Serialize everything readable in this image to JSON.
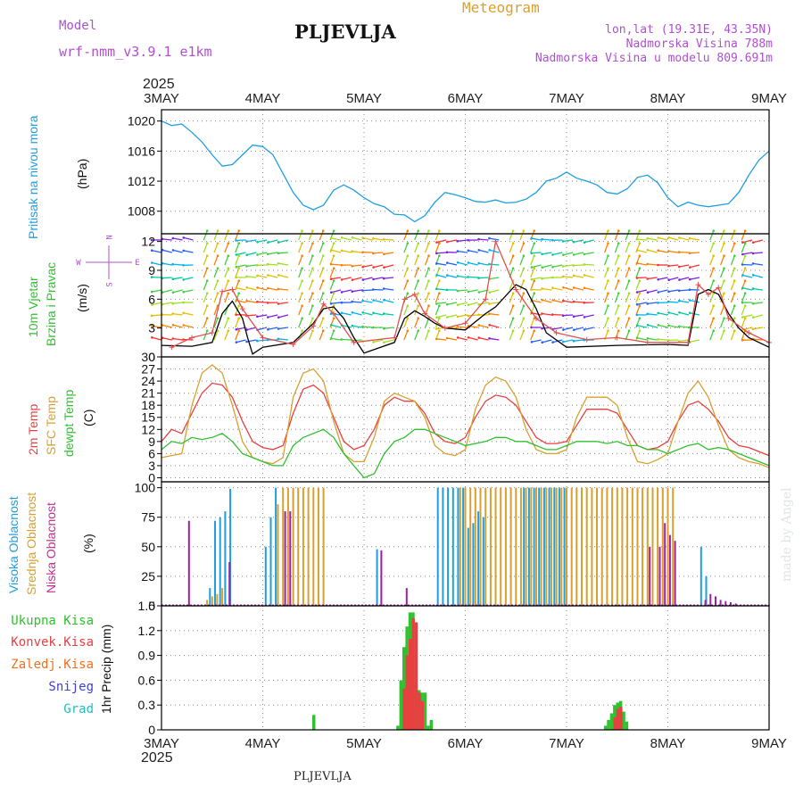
{
  "header": {
    "model_label": "Model",
    "model_value": "wrf-nmm_v3.9.1  e1km",
    "station": "PLJEVLJA",
    "meteogram": "Meteogram",
    "lonlat": "lon,lat (19.31E, 43.35N)",
    "elevation": "Nadmorska Visina 788m",
    "model_elevation": "Nadmorska Visina u modelu 809.691m"
  },
  "footer": {
    "station": "PLJEVLJA",
    "credit": "made by Angel"
  },
  "time_axis": {
    "year": "2025",
    "labels": [
      "3MAY",
      "4MAY",
      "5MAY",
      "6MAY",
      "7MAY",
      "8MAY",
      "9MAY"
    ]
  },
  "colors": {
    "pressure": "#1e9fe0",
    "wind_speed": "#000000",
    "gust": "#e05050",
    "temp2m": "#e84040",
    "sfc_temp": "#d9a030",
    "dewpoint": "#30c030",
    "cloud_high": "#1e9fe0",
    "cloud_mid": "#d9a030",
    "cloud_low": "#a020a0",
    "rain_total": "#30c030",
    "rain_conv": "#e84040",
    "freezing": "#f07020",
    "snow": "#4040d0",
    "hail": "#20c0c0",
    "axis_label_purple": "#b050d0"
  },
  "chart_data": [
    {
      "type": "line",
      "panel": "pressure",
      "ylabel_left": "Pritisak na nivou mora",
      "ylabel_unit": "(hPa)",
      "yticks": [
        1008,
        1012,
        1016,
        1020
      ],
      "ylim": [
        1005,
        1021.5
      ],
      "grid": true,
      "series": [
        {
          "x": [
            0,
            0.1,
            0.2,
            0.3,
            0.4,
            0.5,
            0.6,
            0.7,
            0.8,
            0.9,
            1.0,
            1.1,
            1.2,
            1.3,
            1.4,
            1.5,
            1.6,
            1.7,
            1.8,
            1.9,
            2.0,
            2.1,
            2.2,
            2.3,
            2.4,
            2.5,
            2.6,
            2.7,
            2.8,
            2.9,
            3.0,
            3.1,
            3.2,
            3.3,
            3.4,
            3.5,
            3.6,
            3.7,
            3.8,
            3.9,
            4.0,
            4.1,
            4.2,
            4.3,
            4.4,
            4.5,
            4.6,
            4.7,
            4.8,
            4.9,
            5.0,
            5.1,
            5.2,
            5.3,
            5.4,
            5.5,
            5.6,
            5.7,
            5.8,
            5.9,
            6.0
          ],
          "y": [
            1020.0,
            1019.4,
            1019.6,
            1018.5,
            1017.2,
            1015.5,
            1014.0,
            1014.2,
            1015.5,
            1016.8,
            1016.6,
            1015.5,
            1013.0,
            1010.5,
            1008.8,
            1008.2,
            1008.8,
            1010.8,
            1011.5,
            1010.8,
            1009.8,
            1009.0,
            1008.6,
            1007.6,
            1007.5,
            1006.6,
            1007.4,
            1009.2,
            1010.5,
            1010.2,
            1009.8,
            1009.3,
            1009.2,
            1009.5,
            1009.1,
            1009.2,
            1009.6,
            1010.5,
            1012.0,
            1012.4,
            1013.2,
            1012.4,
            1012.0,
            1011.5,
            1010.5,
            1010.3,
            1011.0,
            1012.5,
            1012.8,
            1011.8,
            1009.8,
            1008.6,
            1009.2,
            1008.8,
            1008.6,
            1008.8,
            1009.0,
            1010.5,
            1012.8,
            1014.8,
            1016.0
          ],
          "color": "#1e9fe0"
        }
      ]
    },
    {
      "type": "line",
      "panel": "wind",
      "ylabel_left": [
        "10m Vjetar",
        "Brzina i Pravac"
      ],
      "ylabel_unit": "(m/s)",
      "yticks": [
        0,
        3,
        6,
        9,
        12
      ],
      "ylim": [
        0,
        12.8
      ],
      "grid": true,
      "compass": [
        "N",
        "E",
        "S",
        "W"
      ],
      "series": [
        {
          "x": [
            0,
            0.3,
            0.5,
            0.6,
            0.7,
            0.8,
            0.85,
            0.9,
            1.0,
            1.3,
            1.5,
            1.6,
            1.7,
            1.8,
            1.9,
            2.0,
            2.3,
            2.4,
            2.5,
            2.6,
            2.7,
            2.8,
            3.0,
            3.2,
            3.3,
            3.5,
            3.6,
            3.7,
            3.8,
            4.0,
            4.5,
            5.0,
            5.2,
            5.3,
            5.4,
            5.5,
            5.6,
            5.7,
            5.8,
            6.0
          ],
          "y": [
            1.2,
            1.1,
            1.5,
            4.5,
            5.8,
            4.0,
            2.0,
            0.3,
            1.0,
            1.5,
            3.5,
            5.0,
            5.2,
            4.0,
            2.0,
            0.4,
            1.5,
            4.0,
            4.8,
            4.2,
            3.5,
            3.0,
            2.8,
            4.5,
            5.2,
            7.5,
            7.0,
            5.0,
            2.5,
            1.0,
            1.2,
            1.3,
            1.2,
            6.5,
            7.0,
            6.5,
            4.5,
            3.0,
            2.0,
            1.0
          ],
          "color": "#000000"
        },
        {
          "x": [
            0.1,
            0.3,
            0.5,
            0.6,
            0.7,
            0.8,
            1.0,
            1.3,
            1.5,
            1.6,
            1.7,
            1.9,
            2.3,
            2.4,
            2.5,
            2.6,
            2.8,
            3.0,
            3.2,
            3.3,
            3.5,
            3.7,
            3.9,
            4.2,
            4.5,
            4.8,
            5.2,
            5.3,
            5.4,
            5.5,
            5.6,
            5.8,
            6.0
          ],
          "y": [
            1.0,
            2.0,
            2.5,
            6.8,
            7.0,
            5.0,
            2.0,
            1.3,
            3.2,
            5.5,
            4.5,
            1.5,
            2.0,
            6.0,
            6.5,
            4.5,
            3.0,
            3.5,
            6.0,
            12.0,
            7.0,
            4.0,
            2.5,
            1.8,
            2.0,
            1.5,
            1.5,
            7.5,
            6.5,
            7.2,
            4.0,
            2.5,
            1.5
          ],
          "color": "#e05050"
        }
      ]
    },
    {
      "type": "line",
      "panel": "temperature",
      "ylabel_left": [
        "2m Temp",
        "SFC Temp",
        "dewpt Temp"
      ],
      "ylabel_unit": "(C)",
      "yticks": [
        0,
        3,
        6,
        9,
        12,
        15,
        18,
        21,
        24,
        27,
        30
      ],
      "ylim": [
        -1,
        30
      ],
      "grid": true,
      "series": [
        {
          "name": "2m Temp",
          "x": [
            0,
            0.1,
            0.2,
            0.3,
            0.4,
            0.5,
            0.6,
            0.7,
            0.8,
            0.9,
            1.0,
            1.1,
            1.2,
            1.3,
            1.4,
            1.5,
            1.6,
            1.7,
            1.8,
            1.9,
            2.0,
            2.1,
            2.2,
            2.3,
            2.4,
            2.5,
            2.6,
            2.7,
            2.8,
            2.9,
            3.0,
            3.1,
            3.2,
            3.3,
            3.4,
            3.5,
            3.6,
            3.7,
            3.8,
            3.9,
            4.0,
            4.1,
            4.2,
            4.3,
            4.4,
            4.5,
            4.6,
            4.7,
            4.8,
            4.9,
            5.0,
            5.1,
            5.2,
            5.3,
            5.4,
            5.5,
            5.6,
            5.7,
            5.8,
            5.9,
            6.0
          ],
          "y": [
            9,
            12,
            11,
            16,
            21,
            23.5,
            23,
            20,
            14,
            9,
            7.5,
            7,
            8,
            16,
            22,
            23,
            21,
            15,
            9,
            7,
            8,
            12,
            18,
            20,
            19,
            19,
            16,
            11,
            9,
            8.5,
            10,
            15,
            19,
            20.5,
            20,
            18,
            14,
            10,
            8.5,
            8.5,
            9,
            13,
            17,
            17,
            17,
            16,
            12,
            8,
            7,
            7.5,
            9,
            14,
            18,
            19,
            17,
            14,
            10,
            8,
            7.5,
            6.5,
            5.5
          ],
          "color": "#e84040"
        },
        {
          "name": "SFC Temp",
          "x": [
            0,
            0.1,
            0.2,
            0.3,
            0.4,
            0.5,
            0.6,
            0.7,
            0.8,
            0.9,
            1.0,
            1.1,
            1.2,
            1.3,
            1.4,
            1.5,
            1.6,
            1.7,
            1.8,
            1.9,
            2.0,
            2.1,
            2.2,
            2.3,
            2.4,
            2.5,
            2.6,
            2.7,
            2.8,
            2.9,
            3.0,
            3.1,
            3.2,
            3.3,
            3.4,
            3.5,
            3.6,
            3.7,
            3.8,
            3.9,
            4.0,
            4.1,
            4.2,
            4.3,
            4.4,
            4.5,
            4.6,
            4.7,
            4.8,
            4.9,
            5.0,
            5.1,
            5.2,
            5.3,
            5.4,
            5.5,
            5.6,
            5.7,
            5.8,
            5.9,
            6.0
          ],
          "y": [
            5,
            5.5,
            6,
            18,
            26,
            28,
            26,
            18,
            9,
            5,
            4,
            3.5,
            5,
            20,
            26,
            27,
            24,
            14,
            6,
            4,
            4,
            10,
            19,
            21,
            20,
            19,
            15,
            8,
            6,
            5.5,
            7,
            17,
            23,
            25,
            24,
            20,
            12,
            7,
            6,
            6,
            7,
            15,
            20,
            20,
            20,
            18,
            10,
            4,
            3.5,
            4.5,
            6,
            14,
            21,
            24,
            20,
            13,
            7,
            5,
            4,
            3.5,
            2.5
          ],
          "color": "#d9a030"
        },
        {
          "name": "dewpt Temp",
          "x": [
            0,
            0.1,
            0.2,
            0.3,
            0.4,
            0.5,
            0.6,
            0.7,
            0.8,
            0.9,
            1.0,
            1.1,
            1.2,
            1.3,
            1.4,
            1.5,
            1.6,
            1.7,
            1.8,
            1.9,
            2.0,
            2.1,
            2.2,
            2.3,
            2.4,
            2.5,
            2.6,
            2.7,
            2.8,
            2.9,
            3.0,
            3.1,
            3.2,
            3.3,
            3.4,
            3.5,
            3.6,
            3.7,
            3.8,
            3.9,
            4.0,
            4.1,
            4.2,
            4.3,
            4.4,
            4.5,
            4.6,
            4.7,
            4.8,
            4.9,
            5.0,
            5.1,
            5.2,
            5.3,
            5.4,
            5.5,
            5.6,
            5.7,
            5.8,
            5.9,
            6.0
          ],
          "y": [
            7,
            9,
            8.5,
            10,
            9.5,
            10,
            11,
            9,
            6,
            5,
            4,
            3,
            3,
            8,
            10,
            11,
            12,
            10,
            6,
            3,
            0,
            1,
            6,
            9,
            10,
            12,
            12,
            11,
            10,
            9,
            8,
            8.5,
            9,
            10,
            10,
            9,
            9,
            8,
            7,
            7,
            8,
            9,
            9,
            9,
            8.5,
            9,
            8,
            8,
            7,
            7,
            6,
            7,
            8,
            8.5,
            7,
            7.5,
            7,
            6,
            5,
            4,
            3
          ],
          "color": "#30c030"
        }
      ]
    },
    {
      "type": "bar",
      "panel": "clouds",
      "ylabel_left": [
        "Visoka Oblacnost",
        "Srednja Oblacnost",
        "Niska Oblacnost"
      ],
      "ylabel_unit": "(%)",
      "yticks": [
        0,
        25,
        50,
        75,
        100
      ],
      "ylim": [
        0,
        105
      ],
      "grid": true,
      "series": [
        {
          "name": "Visoka Oblacnost",
          "x": [
            0.5,
            0.55,
            0.6,
            0.65,
            0.7,
            1.05,
            1.1,
            1.15,
            2.15,
            2.75,
            2.8,
            2.85,
            2.9,
            2.95,
            3.0,
            3.05,
            3.1,
            3.15,
            3.2,
            3.6,
            3.65,
            3.7,
            3.75,
            3.8,
            3.85,
            3.9,
            3.95,
            4.0,
            5.35,
            5.4
          ],
          "y": [
            15,
            72,
            75,
            80,
            99,
            50,
            75,
            100,
            48,
            100,
            100,
            100,
            100,
            100,
            100,
            66,
            70,
            80,
            75,
            100,
            100,
            100,
            100,
            100,
            100,
            100,
            100,
            100,
            50,
            25
          ],
          "color": "#1e9fe0"
        },
        {
          "name": "Srednja Oblacnost",
          "x": [
            0.45,
            0.5,
            0.55,
            0.6,
            1.15,
            1.2,
            1.25,
            1.3,
            1.35,
            1.4,
            1.45,
            1.5,
            1.55,
            1.6,
            2.95,
            3.0,
            3.05,
            3.1,
            3.15,
            3.2,
            3.25,
            3.3,
            3.35,
            3.4,
            3.45,
            3.5,
            3.55,
            3.6,
            3.65,
            3.7,
            3.75,
            3.8,
            3.85,
            3.9,
            3.95,
            4.0,
            4.05,
            4.1,
            4.15,
            4.2,
            4.25,
            4.3,
            4.35,
            4.4,
            4.45,
            4.5,
            4.55,
            4.6,
            4.65,
            4.7,
            4.75,
            4.8,
            4.85,
            4.9,
            4.95,
            5.0,
            5.05
          ],
          "y": [
            5,
            8,
            10,
            15,
            86,
            100,
            100,
            100,
            100,
            100,
            100,
            100,
            100,
            100,
            100,
            100,
            100,
            100,
            100,
            100,
            100,
            100,
            100,
            100,
            100,
            100,
            100,
            100,
            100,
            100,
            100,
            100,
            100,
            100,
            100,
            100,
            100,
            100,
            100,
            100,
            100,
            100,
            100,
            100,
            100,
            100,
            100,
            100,
            100,
            100,
            100,
            100,
            100,
            100,
            100,
            100,
            100
          ],
          "color": "#d9a030"
        },
        {
          "name": "Niska Oblacnost",
          "x": [
            0.25,
            0.65,
            1.2,
            1.25,
            2.15,
            2.4,
            4.8,
            4.9,
            4.95,
            5.0,
            5.05,
            5.35,
            5.4,
            5.45,
            5.5,
            5.55,
            5.6,
            5.65
          ],
          "y": [
            72,
            37,
            80,
            80,
            47,
            15,
            50,
            50,
            70,
            60,
            55,
            5,
            10,
            8,
            5,
            4,
            3,
            2
          ],
          "color": "#a020a0"
        }
      ]
    },
    {
      "type": "bar",
      "panel": "precipitation",
      "ylabel_left": [
        "Ukupna Kisa",
        "Konvek.Kisa",
        "Zaledj.Kisa",
        "Snijeg",
        "Grad"
      ],
      "ylabel_unit": "1hr Precip (mm)",
      "yticks": [
        0,
        0.3,
        0.6,
        0.9,
        1.2,
        1.5
      ],
      "ylim": [
        0,
        1.5
      ],
      "grid": true,
      "series": [
        {
          "name": "Ukupna Kisa",
          "x": [
            1.52,
            2.35,
            2.38,
            2.41,
            2.44,
            2.47,
            2.5,
            2.53,
            2.56,
            2.59,
            2.62,
            2.65,
            2.68,
            4.4,
            4.43,
            4.46,
            4.49,
            4.52,
            4.55,
            4.58,
            4.61
          ],
          "y": [
            0.18,
            0.05,
            0.6,
            1.0,
            1.25,
            1.42,
            1.42,
            0.55,
            0.48,
            0.45,
            0.45,
            0.05,
            0.12,
            0.05,
            0.12,
            0.2,
            0.3,
            0.33,
            0.35,
            0.22,
            0.1
          ],
          "color": "#30c030"
        },
        {
          "name": "Konvek.Kisa",
          "x": [
            2.38,
            2.41,
            2.44,
            2.47,
            2.5,
            2.53,
            2.56,
            4.46,
            4.49,
            4.52
          ],
          "y": [
            0.5,
            0.9,
            1.1,
            1.35,
            1.3,
            0.45,
            0.35,
            0.15,
            0.25,
            0.28
          ],
          "color": "#e84040"
        }
      ]
    }
  ]
}
